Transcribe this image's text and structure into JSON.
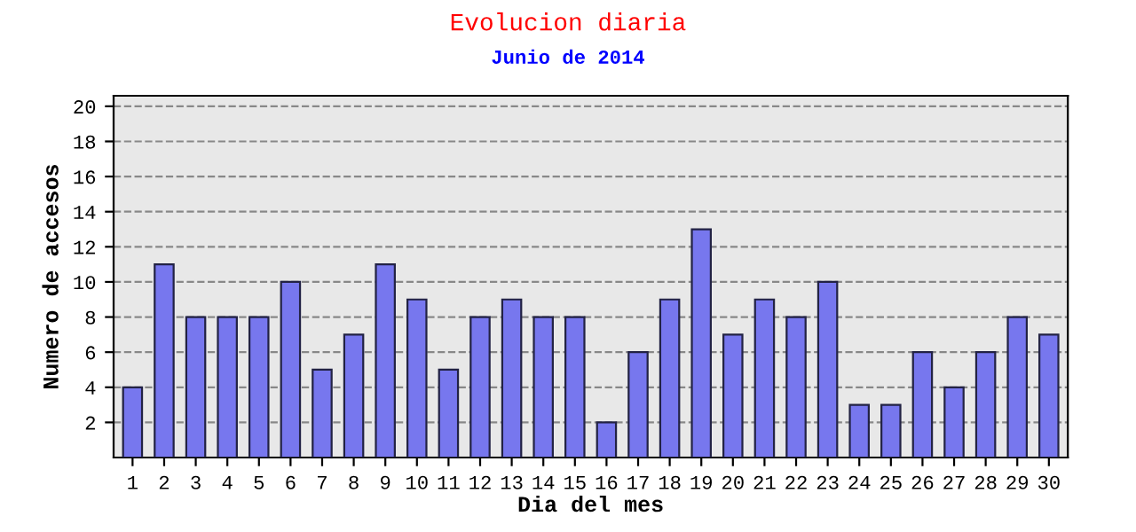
{
  "chart_data": {
    "type": "bar",
    "title": "Evolucion diaria",
    "subtitle": "Junio de 2014",
    "xlabel": "Dia del mes",
    "ylabel": "Numero de accesos",
    "categories": [
      "1",
      "2",
      "3",
      "4",
      "5",
      "6",
      "7",
      "8",
      "9",
      "10",
      "11",
      "12",
      "13",
      "14",
      "15",
      "16",
      "17",
      "18",
      "19",
      "20",
      "21",
      "22",
      "23",
      "24",
      "25",
      "26",
      "27",
      "28",
      "29",
      "30"
    ],
    "values": [
      4,
      11,
      8,
      8,
      8,
      10,
      5,
      7,
      11,
      9,
      5,
      8,
      9,
      8,
      8,
      2,
      6,
      9,
      13,
      7,
      9,
      8,
      10,
      3,
      3,
      6,
      4,
      6,
      8,
      7
    ],
    "color": "#7777ee",
    "ylim": [
      0,
      20.6
    ],
    "yticks": [
      2,
      4,
      6,
      8,
      10,
      12,
      14,
      16,
      18,
      20
    ],
    "grid": "y",
    "line_style": "dashed",
    "legend": false
  }
}
